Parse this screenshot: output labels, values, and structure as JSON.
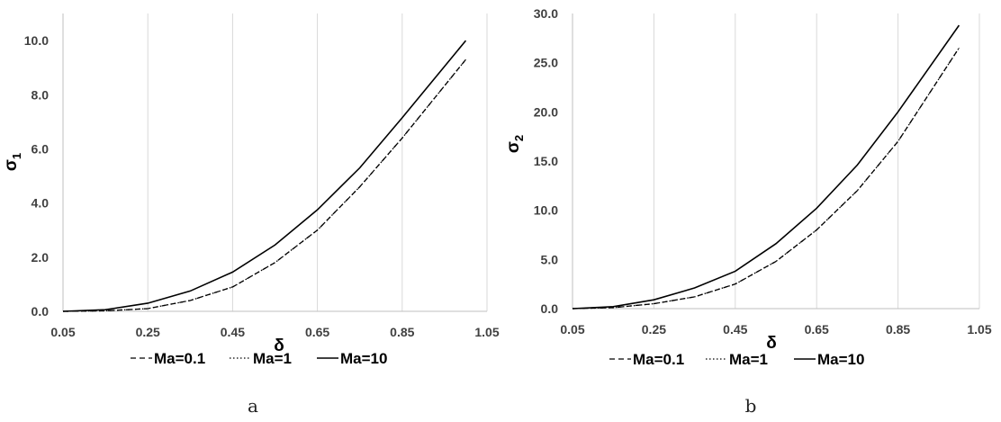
{
  "chart_data": [
    {
      "type": "line",
      "panel_label": "a",
      "xlabel": "δ",
      "ylabel": "σ",
      "ylabel_subscript": "1",
      "xlim": [
        0.05,
        1.05
      ],
      "ylim": [
        0,
        11
      ],
      "x_ticks": [
        "0.05",
        "0.25",
        "0.45",
        "0.65",
        "0.85",
        "1.05"
      ],
      "y_ticks": [
        "0.0",
        "2.0",
        "4.0",
        "6.0",
        "8.0",
        "10.0"
      ],
      "y_tick_values": [
        0,
        2,
        4,
        6,
        8,
        10
      ],
      "grid": "vertical",
      "legend_position": "bottom",
      "x": [
        0.05,
        0.15,
        0.25,
        0.35,
        0.45,
        0.55,
        0.65,
        0.75,
        0.85,
        1.0
      ],
      "series": [
        {
          "name": "Ma=0.1",
          "style": "dashed",
          "values": [
            0,
            0.02,
            0.1,
            0.4,
            0.9,
            1.8,
            3.0,
            4.6,
            6.4,
            9.3
          ]
        },
        {
          "name": "Ma=1",
          "style": "dotted",
          "values": [
            0,
            0.02,
            0.1,
            0.4,
            0.9,
            1.8,
            3.0,
            4.6,
            6.4,
            9.3
          ]
        },
        {
          "name": "Ma=10",
          "style": "solid",
          "values": [
            0,
            0.06,
            0.3,
            0.75,
            1.45,
            2.45,
            3.75,
            5.3,
            7.15,
            10.0
          ]
        }
      ]
    },
    {
      "type": "line",
      "panel_label": "b",
      "xlabel": "δ",
      "ylabel": "σ",
      "ylabel_subscript": "2",
      "xlim": [
        0.05,
        1.05
      ],
      "ylim": [
        0,
        30
      ],
      "x_ticks": [
        "0.05",
        "0.25",
        "0.45",
        "0.65",
        "0.85",
        "1.05"
      ],
      "y_ticks": [
        "0.0",
        "5.0",
        "10.0",
        "15.0",
        "20.0",
        "25.0",
        "30.0"
      ],
      "y_tick_values": [
        0,
        5,
        10,
        15,
        20,
        25,
        30
      ],
      "grid": "vertical",
      "legend_position": "bottom",
      "x": [
        0.05,
        0.15,
        0.25,
        0.35,
        0.45,
        0.55,
        0.65,
        0.75,
        0.85,
        1.0
      ],
      "series": [
        {
          "name": "Ma=0.1",
          "style": "dashed",
          "values": [
            0,
            0.1,
            0.5,
            1.2,
            2.5,
            4.8,
            8.0,
            12.0,
            17.0,
            26.5
          ]
        },
        {
          "name": "Ma=1",
          "style": "dotted",
          "values": [
            0,
            0.1,
            0.5,
            1.2,
            2.5,
            4.8,
            8.0,
            12.0,
            17.0,
            26.5
          ]
        },
        {
          "name": "Ma=10",
          "style": "solid",
          "values": [
            0,
            0.2,
            0.9,
            2.1,
            3.8,
            6.6,
            10.2,
            14.6,
            20.0,
            28.8
          ]
        }
      ]
    }
  ]
}
